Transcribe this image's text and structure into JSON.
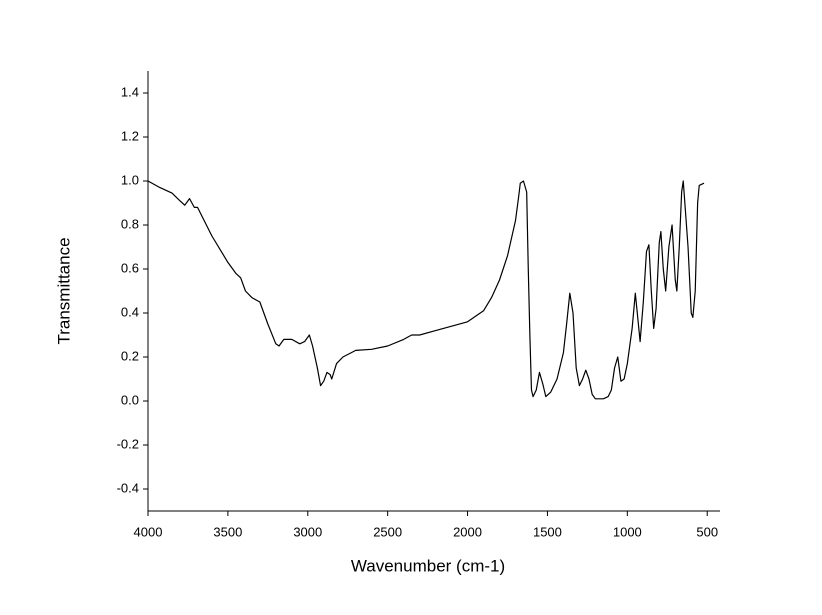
{
  "chart_data": {
    "type": "line",
    "xlabel": "Wavenumber (cm-1)",
    "ylabel": "Transmittance",
    "x": [
      4000,
      3925,
      3850,
      3800,
      3770,
      3740,
      3710,
      3690,
      3600,
      3500,
      3450,
      3420,
      3390,
      3350,
      3300,
      3250,
      3200,
      3180,
      3150,
      3100,
      3050,
      3020,
      2990,
      2970,
      2940,
      2920,
      2900,
      2880,
      2860,
      2850,
      2820,
      2780,
      2700,
      2600,
      2500,
      2400,
      2350,
      2300,
      2200,
      2100,
      2000,
      1900,
      1850,
      1800,
      1750,
      1700,
      1680,
      1670,
      1650,
      1630,
      1620,
      1610,
      1600,
      1590,
      1570,
      1550,
      1530,
      1510,
      1480,
      1440,
      1400,
      1380,
      1360,
      1340,
      1320,
      1300,
      1280,
      1260,
      1240,
      1220,
      1200,
      1150,
      1120,
      1100,
      1080,
      1060,
      1040,
      1020,
      1000,
      970,
      950,
      935,
      920,
      900,
      880,
      865,
      850,
      835,
      820,
      800,
      790,
      775,
      760,
      740,
      720,
      700,
      690,
      675,
      660,
      650,
      635,
      620,
      600,
      590,
      575,
      560,
      550,
      520
    ],
    "values": [
      1.0,
      0.97,
      0.945,
      0.91,
      0.89,
      0.92,
      0.88,
      0.88,
      0.75,
      0.63,
      0.58,
      0.56,
      0.5,
      0.47,
      0.45,
      0.35,
      0.26,
      0.25,
      0.28,
      0.28,
      0.26,
      0.27,
      0.3,
      0.25,
      0.15,
      0.07,
      0.09,
      0.13,
      0.12,
      0.1,
      0.17,
      0.2,
      0.23,
      0.235,
      0.25,
      0.28,
      0.3,
      0.3,
      0.32,
      0.34,
      0.36,
      0.41,
      0.47,
      0.55,
      0.66,
      0.82,
      0.93,
      0.99,
      1.0,
      0.95,
      0.6,
      0.3,
      0.05,
      0.02,
      0.05,
      0.13,
      0.08,
      0.02,
      0.04,
      0.1,
      0.22,
      0.35,
      0.49,
      0.4,
      0.15,
      0.07,
      0.1,
      0.14,
      0.1,
      0.03,
      0.01,
      0.01,
      0.02,
      0.05,
      0.15,
      0.2,
      0.09,
      0.1,
      0.17,
      0.33,
      0.49,
      0.38,
      0.27,
      0.45,
      0.68,
      0.71,
      0.5,
      0.33,
      0.42,
      0.72,
      0.77,
      0.6,
      0.5,
      0.7,
      0.8,
      0.55,
      0.5,
      0.7,
      0.95,
      1.0,
      0.85,
      0.7,
      0.4,
      0.38,
      0.5,
      0.9,
      0.98,
      0.99
    ],
    "color": "#000000",
    "xlim": [
      4000,
      420
    ],
    "xticks": [
      4000,
      3500,
      3000,
      2500,
      2000,
      1500,
      1000,
      500
    ],
    "ylim": [
      -0.5,
      1.5
    ],
    "yticks": [
      -0.4,
      -0.2,
      {
        "value": 0,
        "label": "0.0"
      },
      0.2,
      0.4,
      0.6,
      0.8,
      {
        "value": 1,
        "label": "1.0"
      },
      1.2,
      1.4
    ],
    "grid": false
  }
}
